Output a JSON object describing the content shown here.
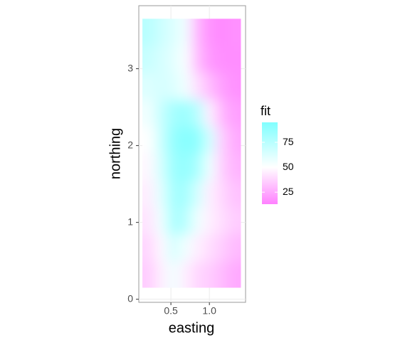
{
  "chart_data": {
    "type": "heatmap",
    "x_label": "easting",
    "y_label": "northing",
    "legend_title": "fit",
    "x": [
      0.21,
      0.37,
      0.53,
      0.69,
      0.85,
      1.01,
      1.17,
      1.33
    ],
    "y": [
      0.325,
      0.675,
      1.025,
      1.375,
      1.725,
      2.075,
      2.425,
      2.775,
      3.125,
      3.475
    ],
    "cell_width": 0.16,
    "cell_height": 0.35,
    "z": [
      [
        35,
        45,
        55,
        45,
        38,
        35,
        30,
        25
      ],
      [
        38,
        48,
        65,
        55,
        45,
        40,
        35,
        30
      ],
      [
        42,
        55,
        80,
        75,
        55,
        45,
        40,
        35
      ],
      [
        45,
        60,
        82,
        82,
        65,
        45,
        38,
        32
      ],
      [
        48,
        65,
        85,
        88,
        80,
        55,
        35,
        28
      ],
      [
        50,
        68,
        88,
        92,
        90,
        65,
        35,
        25
      ],
      [
        55,
        70,
        82,
        85,
        75,
        45,
        28,
        22
      ],
      [
        62,
        65,
        62,
        55,
        40,
        30,
        22,
        18
      ],
      [
        70,
        65,
        60,
        52,
        30,
        20,
        17,
        17
      ],
      [
        75,
        68,
        62,
        55,
        28,
        18,
        16,
        18
      ]
    ],
    "colors": [
      "#ff80ff",
      "#ffffff",
      "#80ffff"
    ],
    "color_limits": [
      13,
      95
    ],
    "color_midpoint": 50,
    "legend_ticks": [
      25,
      50,
      75
    ],
    "xlim": [
      0.083,
      1.47
    ],
    "ylim": [
      -0.04,
      3.82
    ],
    "xticks": [
      0.5,
      {
        "value": 1,
        "label": "1.0"
      }
    ],
    "yticks": [
      0,
      1,
      2,
      3
    ],
    "grid": true
  }
}
